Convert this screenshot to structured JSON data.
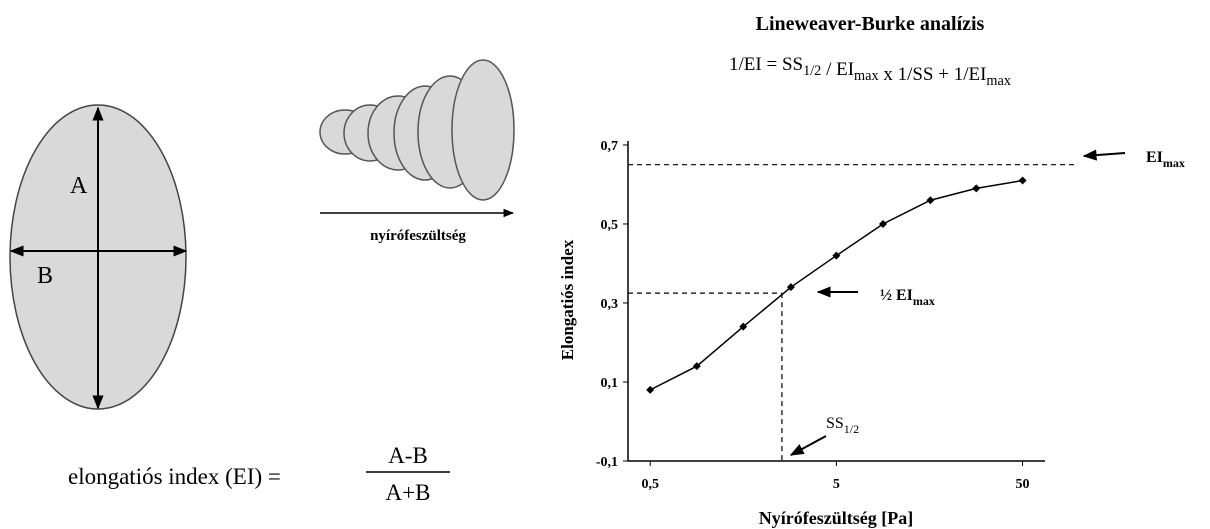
{
  "chart_data": {
    "type": "line",
    "title": "Lineweaver-Burke analízis",
    "formula": [
      {
        "text": "1/EI = SS",
        "sub": "1/2"
      },
      {
        "text": " / EI",
        "sub": "max"
      },
      {
        "text": "  x  1/SS + 1/EI",
        "sub": "max"
      }
    ],
    "x_label": "Nyírófeszültség [Pa]",
    "y_label": "Elongatiós index",
    "xscale": "log",
    "x": [
      0.5,
      0.89,
      1.58,
      2.85,
      5,
      8.9,
      16,
      28.2,
      50
    ],
    "series": [
      {
        "color": "#000000",
        "values": [
          0.08,
          0.14,
          0.24,
          0.34,
          0.42,
          0.5,
          0.56,
          0.59,
          0.61
        ]
      }
    ],
    "xlim": [
      0.38,
      66
    ],
    "ylim": [
      -0.1,
      0.71
    ],
    "xticks": [
      {
        "value": 0.5,
        "label": "0,5"
      },
      5,
      50
    ],
    "yticks": [
      {
        "value": -0.1,
        "label": "-0,1"
      },
      {
        "value": 0.1,
        "label": "0,1"
      },
      {
        "value": 0.3,
        "label": "0,3"
      },
      {
        "value": 0.5,
        "label": "0,5"
      },
      {
        "value": 0.7,
        "label": "0,7"
      }
    ],
    "reference": {
      "ei_max": 0.65,
      "half_ei_max": 0.325,
      "ss_half": 2.55
    },
    "annotations": {
      "ei_max": {
        "text": "EI",
        "sub": "max"
      },
      "half_ei_max": {
        "text": "½ EI",
        "sub": "max"
      },
      "ss_half": {
        "text": "SS",
        "sub": "1/2"
      }
    }
  },
  "diagram": {
    "axis_a": "A",
    "axis_b": "B",
    "arrow_label": "nyírófeszültség",
    "formula_left": "elongatiós index (EI) =",
    "numerator": "A-B",
    "denominator": "A+B"
  }
}
